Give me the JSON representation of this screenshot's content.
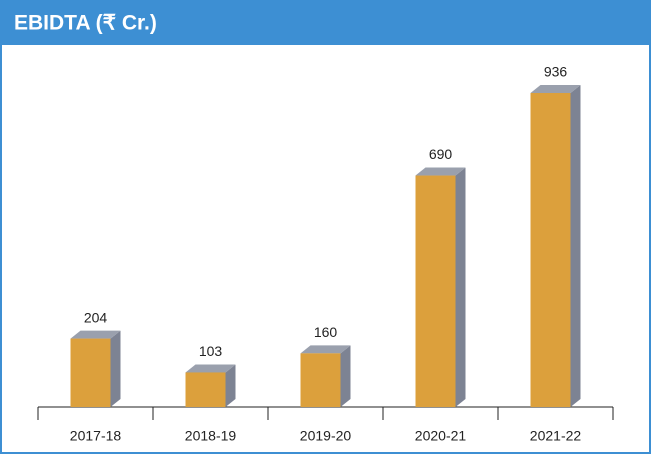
{
  "chart_data": {
    "type": "bar",
    "title": "EBIDTA (₹ Cr.)",
    "categories": [
      "2017-18",
      "2018-19",
      "2019-20",
      "2020-21",
      "2021-22"
    ],
    "values": [
      204,
      103,
      160,
      690,
      936
    ],
    "color": "#dca03c"
  }
}
